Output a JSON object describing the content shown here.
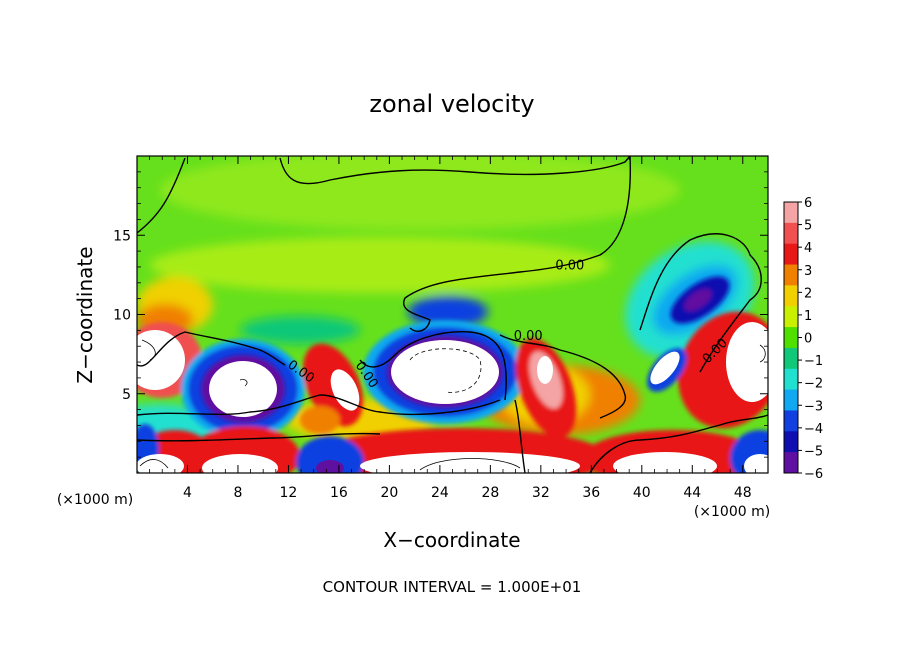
{
  "chart_data": {
    "type": "heatmap",
    "title": "zonal velocity",
    "xlabel": "X−coordinate",
    "ylabel": "Z−coordinate",
    "x_unit_left": "(×1000 m)",
    "x_unit_right": "(×1000 m)",
    "xlim": [
      0,
      50
    ],
    "ylim": [
      0,
      20
    ],
    "x_ticks": [
      4,
      8,
      12,
      16,
      20,
      24,
      28,
      32,
      36,
      40,
      44,
      48
    ],
    "y_ticks": [
      5,
      10,
      15
    ],
    "colorbar": {
      "ticks": [
        "6",
        "5",
        "4",
        "3",
        "2",
        "1",
        "0",
        "−1",
        "−2",
        "−3",
        "−4",
        "−5",
        "−6"
      ],
      "levels": [
        6,
        5,
        4,
        3,
        2,
        1,
        0,
        -1,
        -2,
        -3,
        -4,
        -5,
        -6
      ],
      "colors": [
        "#f4a4a4",
        "#f05050",
        "#e81818",
        "#f08000",
        "#f0d000",
        "#c8f000",
        "#50e000",
        "#10c878",
        "#20e0d0",
        "#10a8f0",
        "#1040e0",
        "#1010b0",
        "#6010a0"
      ]
    },
    "contour_labels": [
      "0.00",
      "0.00",
      "0.00",
      "0.00",
      "0.00"
    ],
    "features": [
      {
        "kind": "positive-core",
        "x": 3,
        "z": 7.5,
        "rx": 3.5,
        "rz": 2.6
      },
      {
        "kind": "positive-core",
        "x": 3,
        "z": 1.2,
        "rx": 3.2,
        "rz": 1.3
      },
      {
        "kind": "positive-core",
        "x": 9,
        "z": 1.0,
        "rx": 4.0,
        "rz": 1.4
      },
      {
        "kind": "positive-core",
        "x": 26,
        "z": 1.3,
        "rx": 8.0,
        "rz": 1.6
      },
      {
        "kind": "positive-core",
        "x": 43,
        "z": 1.3,
        "rx": 6.0,
        "rz": 1.5
      },
      {
        "kind": "positive-core",
        "x": 49,
        "z": 7.5,
        "rx": 3.0,
        "rz": 3.0
      },
      {
        "kind": "negative-core",
        "x": 9,
        "z": 5.5,
        "rx": 4.5,
        "rz": 3.2
      },
      {
        "kind": "negative-core",
        "x": 24,
        "z": 6.5,
        "rx": 6.0,
        "rz": 3.2
      },
      {
        "kind": "negative-core",
        "x": 16.5,
        "z": 1.0,
        "rx": 1.8,
        "rz": 1.2
      },
      {
        "kind": "negative-core",
        "x": 49,
        "z": 1.2,
        "rx": 2.0,
        "rz": 1.2
      },
      {
        "kind": "negative-core",
        "x": 41.5,
        "z": 7.2,
        "rx": 1.5,
        "rz": 2.2
      }
    ],
    "annotation": "CONTOUR INTERVAL = 1.000E+01"
  }
}
